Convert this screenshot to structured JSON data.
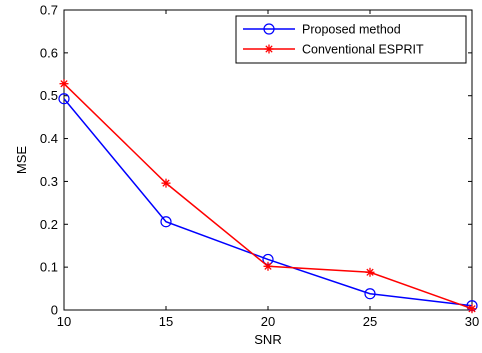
{
  "chart_data": {
    "type": "line",
    "xlabel": "SNR",
    "ylabel": "MSE",
    "xlim": [
      10,
      30
    ],
    "ylim": [
      0,
      0.7
    ],
    "xticks": [
      10,
      15,
      20,
      25,
      30
    ],
    "yticks": [
      0,
      0.1,
      0.2,
      0.3,
      0.4,
      0.5,
      0.6,
      0.7
    ],
    "x": [
      10,
      15,
      20,
      25,
      30
    ],
    "grid": false,
    "legend_position": "top-right",
    "series": [
      {
        "name": "Proposed method",
        "values": [
          0.493,
          0.206,
          0.118,
          0.038,
          0.01
        ],
        "color": "#0000ff",
        "marker": "circle"
      },
      {
        "name": "Conventional ESPRIT",
        "values": [
          0.528,
          0.296,
          0.102,
          0.088,
          0.003
        ],
        "color": "#ff0000",
        "marker": "asterisk"
      }
    ]
  }
}
